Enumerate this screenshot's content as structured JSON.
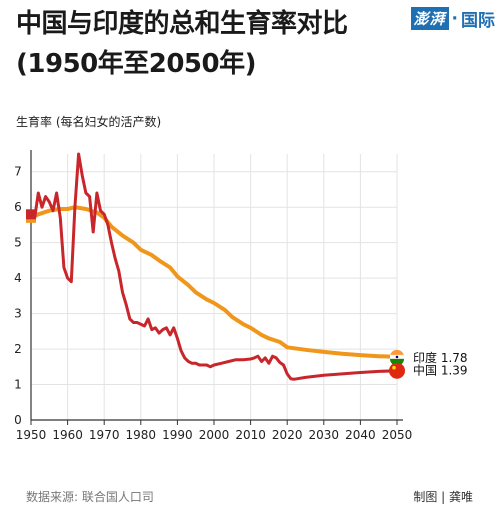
{
  "header": {
    "title_line1": "中国与印度的总和生育率对比",
    "title_line2": "(1950年至2050年)",
    "logo_text": "澎湃",
    "logo_sep": "·",
    "logo_suffix": "国际"
  },
  "footer": {
    "source": "数据来源: 联合国人口司",
    "credit": "制图 | 龚唯"
  },
  "colors": {
    "india": "#f0961a",
    "china": "#c8262b",
    "grid": "#e3e3e3",
    "axis": "#333333"
  },
  "chart_data": {
    "type": "line",
    "ylabel": "生育率 (每名妇女的活产数)",
    "xlabel": "",
    "xlim": [
      1950,
      2050
    ],
    "ylim": [
      0,
      7.5
    ],
    "xticks": [
      "1950",
      "1960",
      "1970",
      "1980",
      "1990",
      "2000",
      "2010",
      "2020",
      "2030",
      "2040",
      "2050"
    ],
    "yticks": [
      "0",
      "1",
      "2",
      "3",
      "4",
      "5",
      "6",
      "7"
    ],
    "grid": true,
    "series": [
      {
        "name": "印度",
        "end_label": "印度 1.78",
        "color": "#f0961a",
        "points": [
          [
            1950,
            5.7
          ],
          [
            1952,
            5.8
          ],
          [
            1955,
            5.9
          ],
          [
            1958,
            5.95
          ],
          [
            1960,
            5.95
          ],
          [
            1962,
            6.0
          ],
          [
            1965,
            5.95
          ],
          [
            1968,
            5.85
          ],
          [
            1970,
            5.7
          ],
          [
            1972,
            5.45
          ],
          [
            1975,
            5.2
          ],
          [
            1978,
            5.0
          ],
          [
            1980,
            4.8
          ],
          [
            1983,
            4.65
          ],
          [
            1985,
            4.5
          ],
          [
            1988,
            4.3
          ],
          [
            1990,
            4.05
          ],
          [
            1993,
            3.8
          ],
          [
            1995,
            3.6
          ],
          [
            1998,
            3.4
          ],
          [
            2000,
            3.3
          ],
          [
            2003,
            3.1
          ],
          [
            2005,
            2.9
          ],
          [
            2008,
            2.7
          ],
          [
            2010,
            2.6
          ],
          [
            2013,
            2.4
          ],
          [
            2015,
            2.3
          ],
          [
            2018,
            2.2
          ],
          [
            2020,
            2.05
          ],
          [
            2025,
            1.98
          ],
          [
            2030,
            1.92
          ],
          [
            2035,
            1.87
          ],
          [
            2040,
            1.83
          ],
          [
            2045,
            1.8
          ],
          [
            2050,
            1.78
          ]
        ]
      },
      {
        "name": "中国",
        "end_label": "中国 1.39",
        "color": "#c8262b",
        "points": [
          [
            1950,
            5.8
          ],
          [
            1951,
            5.7
          ],
          [
            1952,
            6.4
          ],
          [
            1953,
            6.0
          ],
          [
            1954,
            6.3
          ],
          [
            1955,
            6.15
          ],
          [
            1956,
            5.9
          ],
          [
            1957,
            6.4
          ],
          [
            1958,
            5.7
          ],
          [
            1959,
            4.3
          ],
          [
            1960,
            4.0
          ],
          [
            1961,
            3.9
          ],
          [
            1962,
            6.0
          ],
          [
            1963,
            7.5
          ],
          [
            1964,
            6.9
          ],
          [
            1965,
            6.4
          ],
          [
            1966,
            6.3
          ],
          [
            1967,
            5.3
          ],
          [
            1968,
            6.4
          ],
          [
            1969,
            5.9
          ],
          [
            1970,
            5.8
          ],
          [
            1971,
            5.5
          ],
          [
            1972,
            5.0
          ],
          [
            1973,
            4.55
          ],
          [
            1974,
            4.2
          ],
          [
            1975,
            3.6
          ],
          [
            1976,
            3.25
          ],
          [
            1977,
            2.85
          ],
          [
            1978,
            2.75
          ],
          [
            1979,
            2.75
          ],
          [
            1980,
            2.7
          ],
          [
            1981,
            2.65
          ],
          [
            1982,
            2.85
          ],
          [
            1983,
            2.55
          ],
          [
            1984,
            2.6
          ],
          [
            1985,
            2.45
          ],
          [
            1986,
            2.55
          ],
          [
            1987,
            2.6
          ],
          [
            1988,
            2.4
          ],
          [
            1989,
            2.6
          ],
          [
            1990,
            2.3
          ],
          [
            1991,
            1.95
          ],
          [
            1992,
            1.75
          ],
          [
            1993,
            1.65
          ],
          [
            1994,
            1.6
          ],
          [
            1995,
            1.6
          ],
          [
            1996,
            1.55
          ],
          [
            1997,
            1.55
          ],
          [
            1998,
            1.55
          ],
          [
            1999,
            1.5
          ],
          [
            2000,
            1.55
          ],
          [
            2002,
            1.6
          ],
          [
            2004,
            1.65
          ],
          [
            2006,
            1.7
          ],
          [
            2008,
            1.7
          ],
          [
            2010,
            1.72
          ],
          [
            2011,
            1.75
          ],
          [
            2012,
            1.8
          ],
          [
            2013,
            1.65
          ],
          [
            2014,
            1.75
          ],
          [
            2015,
            1.6
          ],
          [
            2016,
            1.8
          ],
          [
            2017,
            1.75
          ],
          [
            2018,
            1.62
          ],
          [
            2019,
            1.55
          ],
          [
            2020,
            1.3
          ],
          [
            2021,
            1.16
          ],
          [
            2022,
            1.15
          ],
          [
            2025,
            1.2
          ],
          [
            2030,
            1.26
          ],
          [
            2035,
            1.3
          ],
          [
            2040,
            1.34
          ],
          [
            2045,
            1.37
          ],
          [
            2050,
            1.39
          ]
        ]
      }
    ]
  }
}
